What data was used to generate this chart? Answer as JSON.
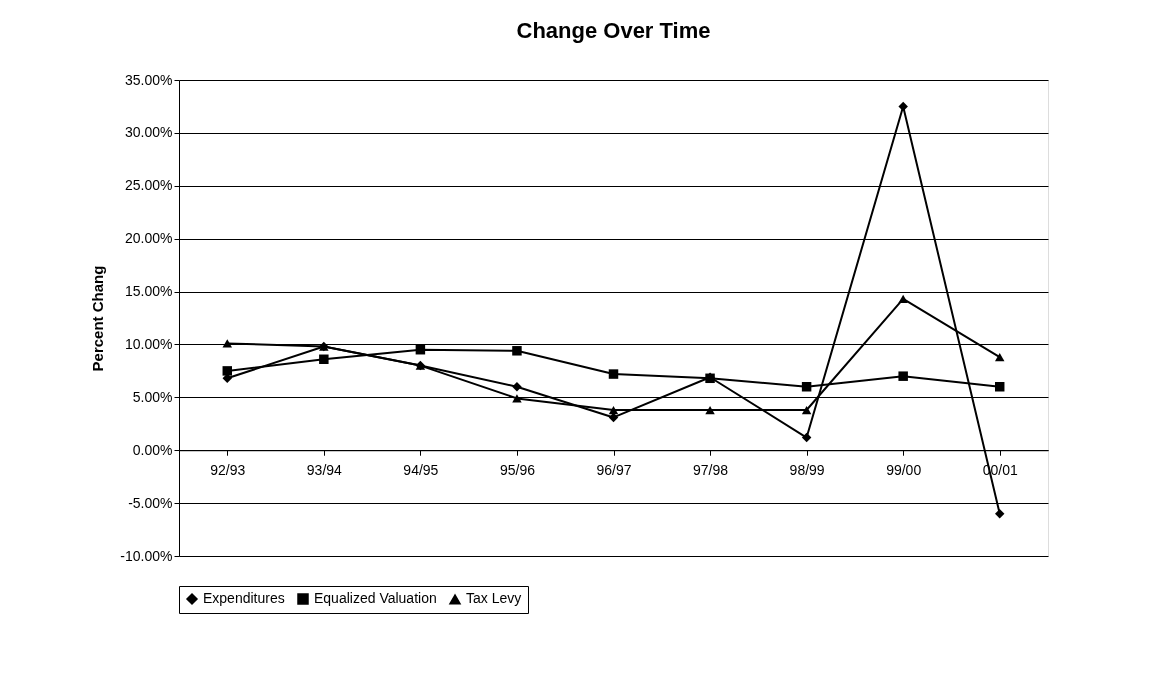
{
  "chart_data": {
    "type": "line",
    "title": "Change Over Time",
    "ylabel": "Percent Chang",
    "categories": [
      "92/93",
      "93/94",
      "94/95",
      "95/96",
      "96/97",
      "97/98",
      "98/99",
      "99/00",
      "00/01"
    ],
    "series": [
      {
        "name": "Expenditures",
        "color": "#000000",
        "marker": "diamond",
        "values": [
          6.8,
          9.8,
          8.0,
          6.0,
          3.1,
          6.9,
          1.2,
          32.5,
          -6.0
        ]
      },
      {
        "name": "Equalized Valuation",
        "color": "#000000",
        "marker": "square",
        "values": [
          7.5,
          8.6,
          9.5,
          9.4,
          7.2,
          6.8,
          6.0,
          7.0,
          6.0
        ]
      },
      {
        "name": "Tax Levy",
        "color": "#000000",
        "marker": "triangle",
        "values": [
          10.1,
          9.8,
          8.0,
          4.9,
          3.8,
          3.8,
          3.8,
          14.3,
          8.8
        ]
      }
    ],
    "ylim": [
      -10,
      35
    ],
    "yticks": [
      {
        "value": -10,
        "label": "-10.00%"
      },
      {
        "value": -5,
        "label": "-5.00%"
      },
      {
        "value": 0,
        "label": "0.00%"
      },
      {
        "value": 5,
        "label": "5.00%"
      },
      {
        "value": 10,
        "label": "10.00%"
      },
      {
        "value": 15,
        "label": "15.00%"
      },
      {
        "value": 20,
        "label": "20.00%"
      },
      {
        "value": 25,
        "label": "25.00%"
      },
      {
        "value": 30,
        "label": "30.00%"
      },
      {
        "value": 35,
        "label": "35.00%"
      }
    ],
    "grid": "y",
    "legend": "bottom",
    "line_style": "solid"
  }
}
